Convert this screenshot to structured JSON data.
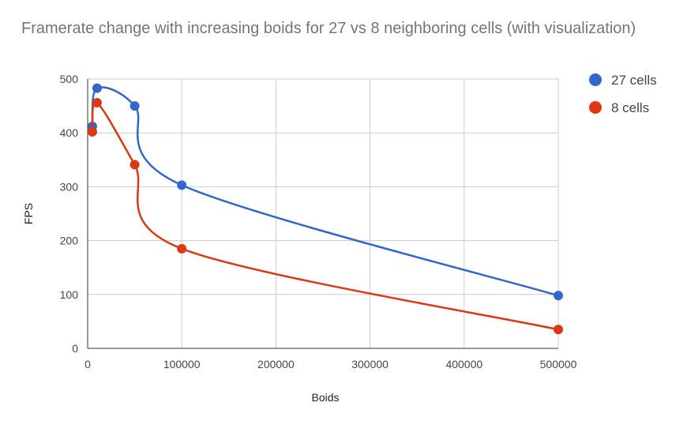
{
  "chart_data": {
    "type": "line",
    "title": "Framerate change with increasing boids for 27 vs 8 neighboring cells (with visualization)",
    "xlabel": "Boids",
    "ylabel": "FPS",
    "xlim": [
      0,
      500000
    ],
    "ylim": [
      0,
      500
    ],
    "x_ticks": [
      0,
      100000,
      200000,
      300000,
      400000,
      500000
    ],
    "y_ticks": [
      0,
      100,
      200,
      300,
      400,
      500
    ],
    "x": [
      5000,
      10000,
      50000,
      100000,
      500000
    ],
    "series": [
      {
        "name": "27 cells",
        "color": "#3366cc",
        "values": [
          412,
          483,
          450,
          303,
          98
        ]
      },
      {
        "name": "8 cells",
        "color": "#dc3912",
        "values": [
          402,
          456,
          341,
          185,
          35
        ]
      }
    ],
    "grid": true,
    "legend_position": "right",
    "smooth": true
  }
}
